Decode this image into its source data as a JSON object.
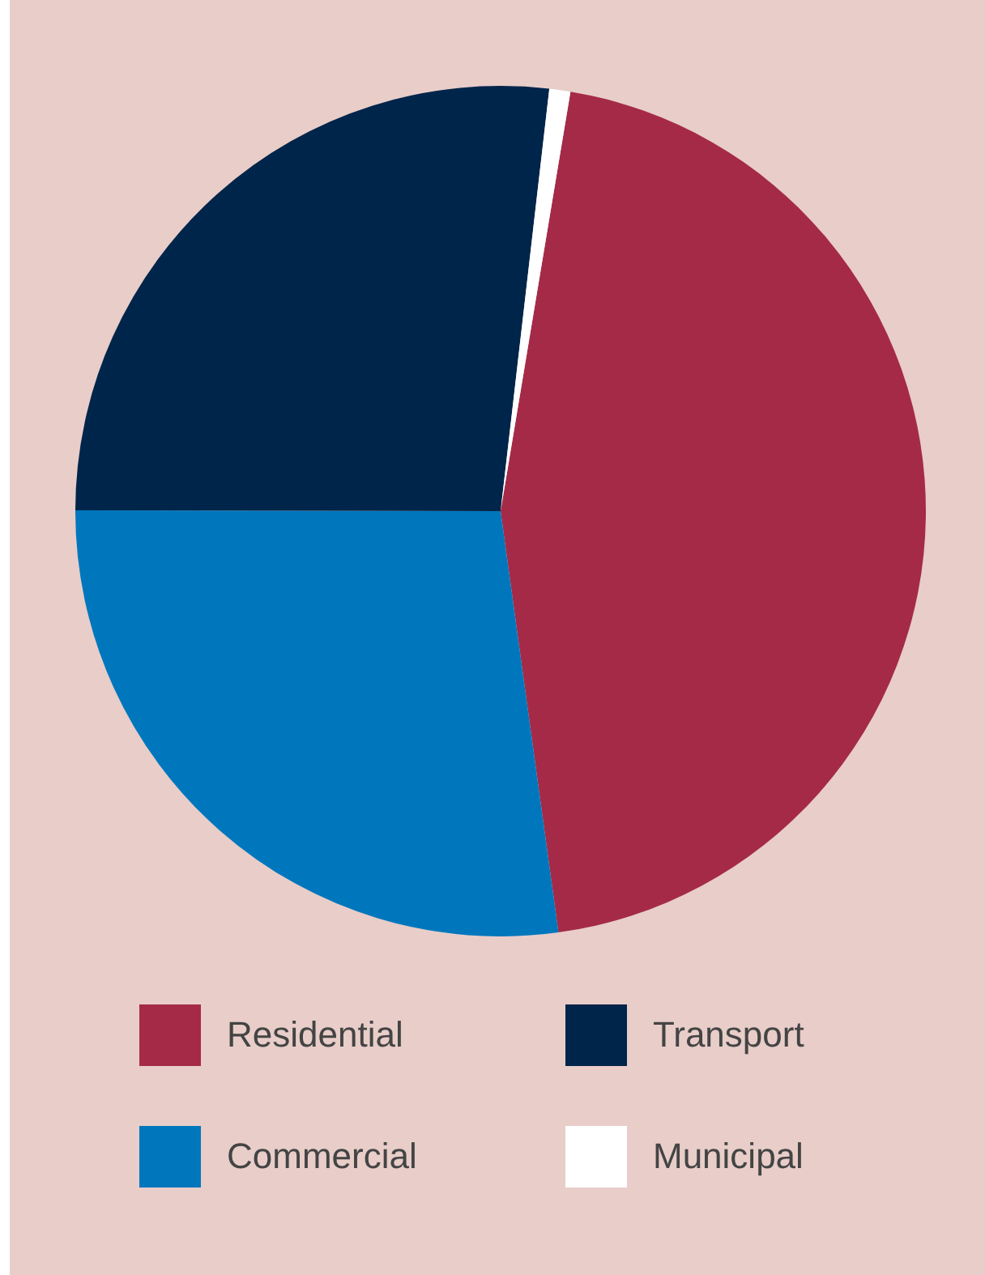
{
  "chart_data": {
    "type": "pie",
    "categories": [
      "Residential",
      "Commercial",
      "Transport",
      "Municipal"
    ],
    "values": [
      45.2,
      27.2,
      26.8,
      0.8
    ],
    "colors": [
      "#a52a48",
      "#0077bd",
      "#00254a",
      "#ffffff"
    ],
    "legend": "bottom"
  }
}
